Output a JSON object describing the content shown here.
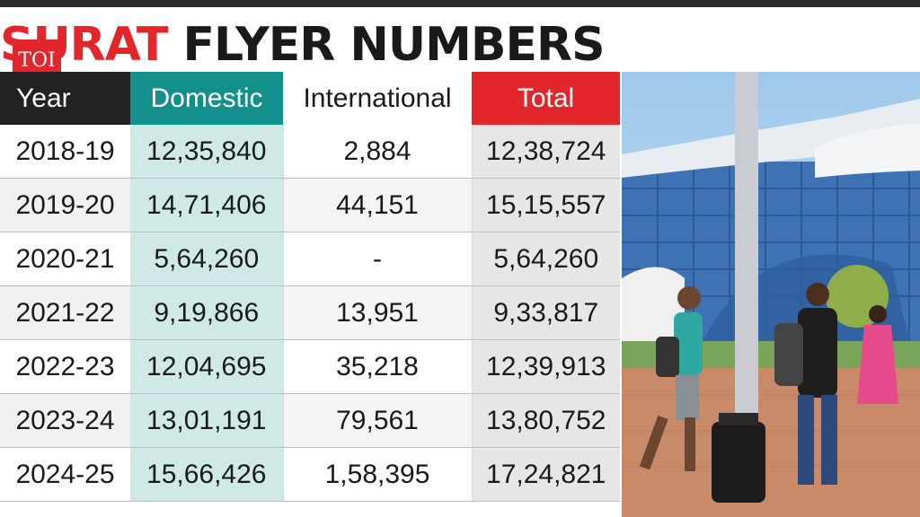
{
  "title": {
    "red_part": "SURAT",
    "black_part": " FLYER NUMBERS"
  },
  "logo": {
    "text": "TOI",
    "color": "#e3262c"
  },
  "colors": {
    "domestic": "#138f8c",
    "total": "#e3262c",
    "year_header": "#222222"
  },
  "table": {
    "headers": [
      "Year",
      "Domestic",
      "International",
      "Total"
    ],
    "rows": [
      [
        "2018-19",
        "12,35,840",
        "2,884",
        "12,38,724"
      ],
      [
        "2019-20",
        "14,71,406",
        "44,151",
        "15,15,557"
      ],
      [
        "2020-21",
        "5,64,260",
        "-",
        "5,64,260"
      ],
      [
        "2021-22",
        "9,19,866",
        "13,951",
        "9,33,817"
      ],
      [
        "2022-23",
        "12,04,695",
        "35,218",
        "12,39,913"
      ],
      [
        "2023-24",
        "13,01,191",
        "79,561",
        "13,80,752"
      ],
      [
        "2024-25",
        "15,66,426",
        "1,58,395",
        "17,24,821"
      ]
    ]
  }
}
